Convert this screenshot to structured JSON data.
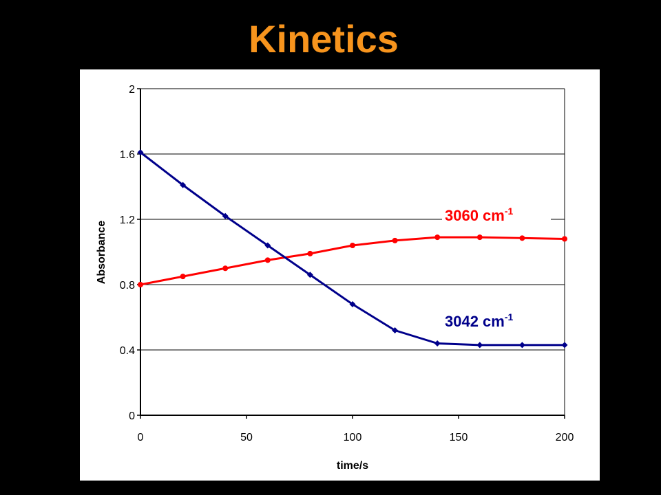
{
  "slide": {
    "title": "Kinetics"
  },
  "colors": {
    "background": "#000000",
    "title": "#f7941d",
    "plot_area": "#ffffff",
    "series_3060": "#ff0000",
    "series_3042": "#00008b"
  },
  "chart_data": {
    "type": "line",
    "title": "",
    "xlabel": "time/s",
    "ylabel": "Absorbance",
    "xlim": [
      0,
      200
    ],
    "ylim": [
      0,
      2
    ],
    "x_ticks": [
      "0",
      "50",
      "100",
      "150",
      "200"
    ],
    "y_ticks": [
      "0",
      "0.4",
      "0.8",
      "1.2",
      "1.6",
      "2"
    ],
    "grid": "horizontal",
    "x": [
      0,
      20,
      40,
      60,
      80,
      100,
      120,
      140,
      160,
      180,
      200
    ],
    "series": [
      {
        "name": "3060 cm",
        "superscript": "-1",
        "color": "#ff0000",
        "marker": "circle",
        "values": [
          0.8,
          0.85,
          0.9,
          0.95,
          0.99,
          1.04,
          1.07,
          1.09,
          1.09,
          1.085,
          1.08
        ]
      },
      {
        "name": "3042 cm",
        "superscript": "-1",
        "color": "#00008b",
        "marker": "diamond",
        "values": [
          1.61,
          1.41,
          1.22,
          1.04,
          0.86,
          0.68,
          0.52,
          0.44,
          0.43,
          0.43,
          0.43
        ]
      }
    ]
  }
}
